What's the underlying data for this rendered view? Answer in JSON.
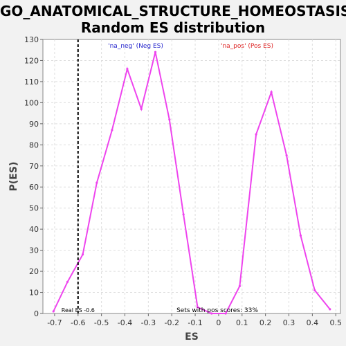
{
  "chart_data": {
    "type": "line",
    "title_lines": [
      "GO_ANATOMICAL_STRUCTURE_HOMEOSTASIS:",
      "Random ES distribution"
    ],
    "xlabel": "ES",
    "ylabel": "P(ES)",
    "xlim": [
      -0.75,
      0.52
    ],
    "ylim": [
      0,
      130
    ],
    "xticks": [
      -0.7,
      -0.6,
      -0.5,
      -0.4,
      -0.3,
      -0.2,
      -0.1,
      0.0,
      0.1,
      0.2,
      0.3,
      0.4,
      0.5
    ],
    "xtick_labels": [
      "-0.7",
      "-0.6",
      "-0.5",
      "-0.4",
      "-0.3",
      "-0.2",
      "-0.1",
      "0",
      "0.1",
      "0.2",
      "0.3",
      "0.4",
      "0.5"
    ],
    "yticks": [
      0,
      10,
      20,
      30,
      40,
      50,
      60,
      70,
      80,
      90,
      100,
      110,
      120,
      130
    ],
    "grid": true,
    "series": [
      {
        "color": "#ee44ee",
        "x": [
          -0.705,
          -0.645,
          -0.58,
          -0.52,
          -0.455,
          -0.39,
          -0.33,
          -0.27,
          -0.21,
          -0.15,
          -0.09,
          -0.03,
          0.03,
          0.09,
          0.16,
          0.225,
          0.29,
          0.35,
          0.41,
          0.475
        ],
        "y": [
          1,
          15,
          28,
          62,
          87,
          116,
          97,
          124,
          92,
          47,
          3,
          0,
          0,
          13,
          85,
          105,
          75,
          37,
          11,
          2
        ]
      }
    ],
    "real_es": {
      "value": -0.6,
      "label": "Real ES -0.6"
    },
    "annotations": {
      "neg": {
        "text": "'na_neg' (Neg ES)",
        "color": "#2222cc"
      },
      "pos": {
        "text": "'na_pos' (Pos ES)",
        "color": "#dd2222"
      },
      "pos_scores": {
        "text": "Sets with pos scores: 33%"
      }
    }
  }
}
